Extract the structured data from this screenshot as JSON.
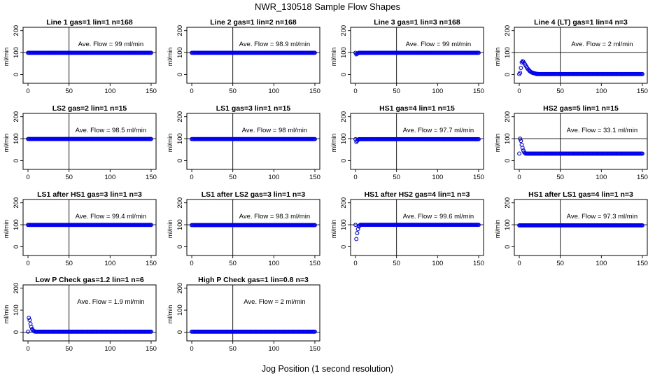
{
  "title": "NWR_130518  Sample Flow Shapes",
  "xlabel": "Jog Position (1 second resolution)",
  "colors": {
    "points": "#0000ee",
    "axis": "#000000"
  },
  "chart_data": [
    {
      "type": "scatter",
      "title": "Line 1 gas=1 lin=1 n=168",
      "ylabel": "ml/min",
      "annotation": "Ave. Flow =  99  ml/min",
      "xlim": [
        0,
        150
      ],
      "ylim": [
        0,
        200
      ],
      "xticks": [
        0,
        50,
        100,
        150
      ],
      "yticks": [
        0,
        100,
        200
      ],
      "vline": 50,
      "hline": 100,
      "series": {
        "name": "flow",
        "x_range": [
          0,
          150
        ],
        "base": 99,
        "transient": []
      }
    },
    {
      "type": "scatter",
      "title": "Line 2 gas=1 lin=2 n=168",
      "ylabel": "ml/min",
      "annotation": "Ave. Flow =  98.9  ml/min",
      "xlim": [
        0,
        150
      ],
      "ylim": [
        0,
        200
      ],
      "xticks": [
        0,
        50,
        100,
        150
      ],
      "yticks": [
        0,
        100,
        200
      ],
      "vline": 50,
      "hline": 100,
      "series": {
        "name": "flow",
        "x_range": [
          0,
          150
        ],
        "base": 98.9,
        "transient": []
      }
    },
    {
      "type": "scatter",
      "title": "Line 3 gas=1 lin=3 n=168",
      "ylabel": "ml/min",
      "annotation": "Ave. Flow =  99  ml/min",
      "xlim": [
        0,
        150
      ],
      "ylim": [
        0,
        200
      ],
      "xticks": [
        0,
        50,
        100,
        150
      ],
      "yticks": [
        0,
        100,
        200
      ],
      "vline": 50,
      "hline": 100,
      "series": {
        "name": "flow",
        "x_range": [
          0,
          150
        ],
        "base": 99,
        "transient": [
          [
            1,
            92
          ],
          [
            2,
            95
          ],
          [
            3,
            97
          ]
        ]
      }
    },
    {
      "type": "scatter",
      "title": "Line 4 (LT) gas=1 lin=4 n=3",
      "ylabel": "ml/min",
      "annotation": "Ave. Flow =  2  ml/min",
      "xlim": [
        0,
        150
      ],
      "ylim": [
        0,
        200
      ],
      "xticks": [
        0,
        50,
        100,
        150
      ],
      "yticks": [
        0,
        100,
        200
      ],
      "vline": 50,
      "hline": 100,
      "series": {
        "name": "flow",
        "x_range": [
          0,
          150
        ],
        "base": 2,
        "transient": [
          [
            1,
            8
          ],
          [
            2,
            30
          ],
          [
            3,
            55
          ],
          [
            4,
            60
          ],
          [
            5,
            58
          ],
          [
            6,
            52
          ],
          [
            7,
            46
          ],
          [
            8,
            40
          ],
          [
            9,
            34
          ],
          [
            10,
            28
          ],
          [
            11,
            23
          ],
          [
            12,
            19
          ],
          [
            13,
            15
          ],
          [
            14,
            12
          ],
          [
            15,
            10
          ],
          [
            16,
            8
          ],
          [
            17,
            7
          ],
          [
            18,
            6
          ],
          [
            19,
            5
          ],
          [
            20,
            4
          ],
          [
            22,
            3
          ]
        ]
      }
    },
    {
      "type": "scatter",
      "title": "LS2 gas=2 lin=1 n=15",
      "ylabel": "ml/min",
      "annotation": "Ave. Flow =  98.5  ml/min",
      "xlim": [
        0,
        150
      ],
      "ylim": [
        0,
        200
      ],
      "xticks": [
        0,
        50,
        100,
        150
      ],
      "yticks": [
        0,
        100,
        200
      ],
      "vline": 50,
      "hline": 100,
      "series": {
        "name": "flow",
        "x_range": [
          0,
          150
        ],
        "base": 98.5,
        "transient": []
      }
    },
    {
      "type": "scatter",
      "title": "LS1 gas=3 lin=1 n=15",
      "ylabel": "ml/min",
      "annotation": "Ave. Flow =  98  ml/min",
      "xlim": [
        0,
        150
      ],
      "ylim": [
        0,
        200
      ],
      "xticks": [
        0,
        50,
        100,
        150
      ],
      "yticks": [
        0,
        100,
        200
      ],
      "vline": 50,
      "hline": 100,
      "series": {
        "name": "flow",
        "x_range": [
          0,
          150
        ],
        "base": 98,
        "transient": []
      }
    },
    {
      "type": "scatter",
      "title": "HS1 gas=4 lin=1 n=15",
      "ylabel": "ml/min",
      "annotation": "Ave. Flow =  97.7  ml/min",
      "xlim": [
        0,
        150
      ],
      "ylim": [
        0,
        200
      ],
      "xticks": [
        0,
        50,
        100,
        150
      ],
      "yticks": [
        0,
        100,
        200
      ],
      "vline": 50,
      "hline": 100,
      "series": {
        "name": "flow",
        "x_range": [
          0,
          150
        ],
        "base": 97.7,
        "transient": [
          [
            1,
            85
          ],
          [
            2,
            90
          ],
          [
            3,
            94
          ]
        ]
      }
    },
    {
      "type": "scatter",
      "title": "HS2 gas=5 lin=1 n=15",
      "ylabel": "ml/min",
      "annotation": "Ave. Flow =  33.1  ml/min",
      "xlim": [
        0,
        150
      ],
      "ylim": [
        0,
        200
      ],
      "xticks": [
        0,
        50,
        100,
        150
      ],
      "yticks": [
        0,
        100,
        200
      ],
      "vline": 50,
      "hline": 100,
      "series": {
        "name": "flow",
        "x_range": [
          0,
          150
        ],
        "base": 32,
        "transient": [
          [
            1,
            100
          ],
          [
            2,
            90
          ],
          [
            3,
            72
          ],
          [
            4,
            58
          ],
          [
            5,
            46
          ],
          [
            6,
            38
          ],
          [
            7,
            34
          ]
        ]
      }
    },
    {
      "type": "scatter",
      "title": "LS1 after HS1 gas=3 lin=1 n=3",
      "ylabel": "ml/min",
      "annotation": "Ave. Flow =  99.4  ml/min",
      "xlim": [
        0,
        150
      ],
      "ylim": [
        0,
        200
      ],
      "xticks": [
        0,
        50,
        100,
        150
      ],
      "yticks": [
        0,
        100,
        200
      ],
      "vline": 50,
      "hline": 100,
      "series": {
        "name": "flow",
        "x_range": [
          0,
          150
        ],
        "base": 99.4,
        "transient": []
      }
    },
    {
      "type": "scatter",
      "title": "LS1 after LS2 gas=3 lin=1 n=3",
      "ylabel": "ml/min",
      "annotation": "Ave. Flow =  98.3  ml/min",
      "xlim": [
        0,
        150
      ],
      "ylim": [
        0,
        200
      ],
      "xticks": [
        0,
        50,
        100,
        150
      ],
      "yticks": [
        0,
        100,
        200
      ],
      "vline": 50,
      "hline": 100,
      "series": {
        "name": "flow",
        "x_range": [
          0,
          150
        ],
        "base": 98.3,
        "transient": []
      }
    },
    {
      "type": "scatter",
      "title": "HS1 after HS2 gas=4 lin=1 n=3",
      "ylabel": "ml/min",
      "annotation": "Ave. Flow =  99.6  ml/min",
      "xlim": [
        0,
        150
      ],
      "ylim": [
        0,
        200
      ],
      "xticks": [
        0,
        50,
        100,
        150
      ],
      "yticks": [
        0,
        100,
        200
      ],
      "vline": 50,
      "hline": 100,
      "series": {
        "name": "flow",
        "x_range": [
          0,
          150
        ],
        "base": 99.6,
        "transient": [
          [
            1,
            35
          ],
          [
            2,
            62
          ],
          [
            3,
            80
          ],
          [
            4,
            92
          ],
          [
            5,
            97
          ]
        ]
      }
    },
    {
      "type": "scatter",
      "title": "HS1 after LS1 gas=4 lin=1 n=3",
      "ylabel": "ml/min",
      "annotation": "Ave. Flow =  97.3  ml/min",
      "xlim": [
        0,
        150
      ],
      "ylim": [
        0,
        200
      ],
      "xticks": [
        0,
        50,
        100,
        150
      ],
      "yticks": [
        0,
        100,
        200
      ],
      "vline": 50,
      "hline": 100,
      "series": {
        "name": "flow",
        "x_range": [
          0,
          150
        ],
        "base": 97.3,
        "transient": []
      }
    },
    {
      "type": "scatter",
      "title": "Low P Check gas=1.2 lin=1 n=6",
      "ylabel": "ml/min",
      "annotation": "Ave. Flow =  1.9  ml/min",
      "xlim": [
        0,
        150
      ],
      "ylim": [
        0,
        200
      ],
      "xticks": [
        0,
        50,
        100,
        150
      ],
      "yticks": [
        0,
        100,
        200
      ],
      "vline": 50,
      "hline": 0,
      "series": {
        "name": "flow",
        "x_range": [
          0,
          150
        ],
        "base": 1.9,
        "transient": [
          [
            1,
            65
          ],
          [
            2,
            55
          ],
          [
            3,
            38
          ],
          [
            4,
            24
          ],
          [
            5,
            14
          ],
          [
            6,
            8
          ],
          [
            7,
            5
          ],
          [
            8,
            3
          ]
        ]
      }
    },
    {
      "type": "scatter",
      "title": "High P Check gas=1 lin=0.8 n=3",
      "ylabel": "ml/min",
      "annotation": "Ave. Flow =  2  ml/min",
      "xlim": [
        0,
        150
      ],
      "ylim": [
        0,
        200
      ],
      "xticks": [
        0,
        50,
        100,
        150
      ],
      "yticks": [
        0,
        100,
        200
      ],
      "vline": 50,
      "hline": 0,
      "series": {
        "name": "flow",
        "x_range": [
          0,
          150
        ],
        "base": 2,
        "transient": []
      }
    }
  ]
}
